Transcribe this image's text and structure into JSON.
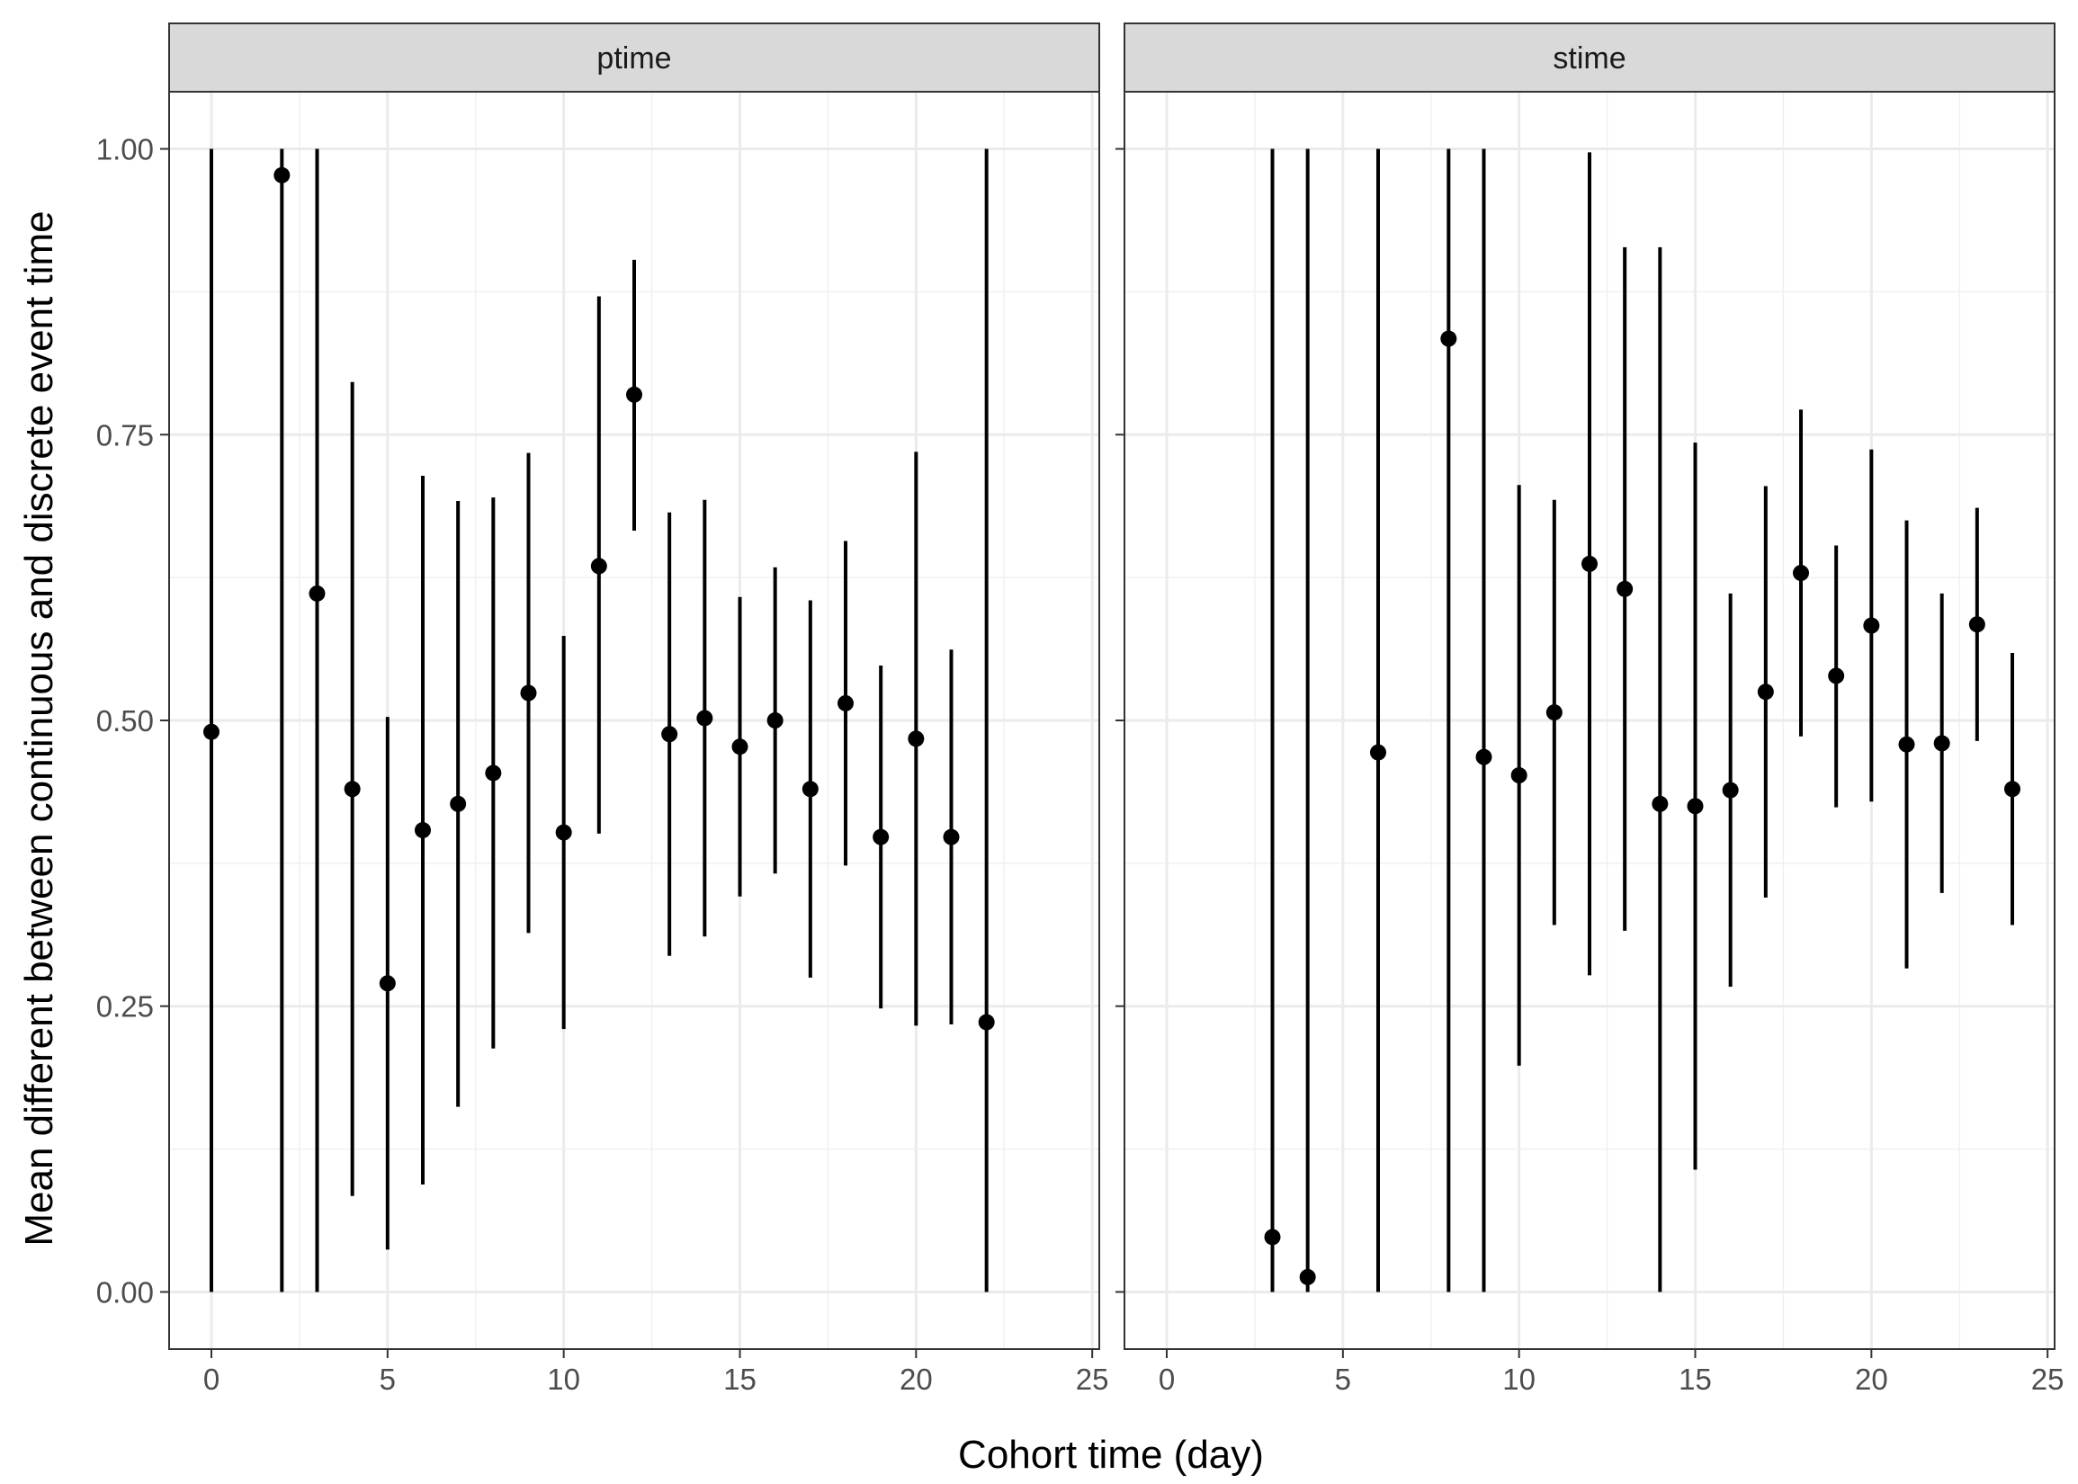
{
  "chart_data": {
    "type": "errorbar-scatter",
    "xlabel": "Cohort time (day)",
    "ylabel": "Mean different between continuous and discrete event time",
    "xlim": [
      -1.2,
      25.2
    ],
    "ylim": [
      -0.05,
      1.05
    ],
    "xticks": [
      0,
      5,
      10,
      15,
      20,
      25
    ],
    "yticks": [
      0.0,
      0.25,
      0.5,
      0.75,
      1.0
    ],
    "ytick_labels": [
      "0.00",
      "0.25",
      "0.50",
      "0.75",
      "1.00"
    ],
    "grid": true,
    "theme": "bw",
    "point_color": "#000000",
    "panels": [
      {
        "name": "ptime",
        "points": [
          {
            "x": 0,
            "y": 0.49,
            "lower": 0.0,
            "upper": 1.0
          },
          {
            "x": 2,
            "y": 0.977,
            "lower": 0.0,
            "upper": 1.0
          },
          {
            "x": 3,
            "y": 0.611,
            "lower": 0.0,
            "upper": 1.0
          },
          {
            "x": 4,
            "y": 0.44,
            "lower": 0.084,
            "upper": 0.796
          },
          {
            "x": 5,
            "y": 0.27,
            "lower": 0.037,
            "upper": 0.503
          },
          {
            "x": 6,
            "y": 0.404,
            "lower": 0.094,
            "upper": 0.714
          },
          {
            "x": 7,
            "y": 0.427,
            "lower": 0.162,
            "upper": 0.692
          },
          {
            "x": 8,
            "y": 0.454,
            "lower": 0.213,
            "upper": 0.695
          },
          {
            "x": 9,
            "y": 0.524,
            "lower": 0.314,
            "upper": 0.734
          },
          {
            "x": 10,
            "y": 0.402,
            "lower": 0.23,
            "upper": 0.574
          },
          {
            "x": 11,
            "y": 0.635,
            "lower": 0.401,
            "upper": 0.871
          },
          {
            "x": 12,
            "y": 0.785,
            "lower": 0.666,
            "upper": 0.903
          },
          {
            "x": 13,
            "y": 0.488,
            "lower": 0.294,
            "upper": 0.682
          },
          {
            "x": 14,
            "y": 0.502,
            "lower": 0.311,
            "upper": 0.693
          },
          {
            "x": 15,
            "y": 0.477,
            "lower": 0.346,
            "upper": 0.608
          },
          {
            "x": 16,
            "y": 0.5,
            "lower": 0.366,
            "upper": 0.634
          },
          {
            "x": 17,
            "y": 0.44,
            "lower": 0.275,
            "upper": 0.605
          },
          {
            "x": 18,
            "y": 0.515,
            "lower": 0.373,
            "upper": 0.657
          },
          {
            "x": 19,
            "y": 0.398,
            "lower": 0.248,
            "upper": 0.548
          },
          {
            "x": 20,
            "y": 0.484,
            "lower": 0.233,
            "upper": 0.735
          },
          {
            "x": 21,
            "y": 0.398,
            "lower": 0.234,
            "upper": 0.562
          },
          {
            "x": 22,
            "y": 0.236,
            "lower": 0.0,
            "upper": 1.0
          }
        ]
      },
      {
        "name": "stime",
        "points": [
          {
            "x": 3,
            "y": 0.048,
            "lower": 0.0,
            "upper": 1.0
          },
          {
            "x": 4,
            "y": 0.013,
            "lower": 0.0,
            "upper": 1.0
          },
          {
            "x": 6,
            "y": 0.472,
            "lower": 0.0,
            "upper": 1.0
          },
          {
            "x": 8,
            "y": 0.834,
            "lower": 0.0,
            "upper": 1.0
          },
          {
            "x": 9,
            "y": 0.468,
            "lower": 0.0,
            "upper": 1.0
          },
          {
            "x": 10,
            "y": 0.452,
            "lower": 0.198,
            "upper": 0.706
          },
          {
            "x": 11,
            "y": 0.507,
            "lower": 0.321,
            "upper": 0.693
          },
          {
            "x": 12,
            "y": 0.637,
            "lower": 0.277,
            "upper": 0.997
          },
          {
            "x": 13,
            "y": 0.615,
            "lower": 0.316,
            "upper": 0.914
          },
          {
            "x": 14,
            "y": 0.427,
            "lower": 0.0,
            "upper": 0.914
          },
          {
            "x": 15,
            "y": 0.425,
            "lower": 0.107,
            "upper": 0.743
          },
          {
            "x": 16,
            "y": 0.439,
            "lower": 0.267,
            "upper": 0.611
          },
          {
            "x": 17,
            "y": 0.525,
            "lower": 0.345,
            "upper": 0.705
          },
          {
            "x": 18,
            "y": 0.629,
            "lower": 0.486,
            "upper": 0.772
          },
          {
            "x": 19,
            "y": 0.539,
            "lower": 0.424,
            "upper": 0.653
          },
          {
            "x": 20,
            "y": 0.583,
            "lower": 0.429,
            "upper": 0.737
          },
          {
            "x": 21,
            "y": 0.479,
            "lower": 0.283,
            "upper": 0.675
          },
          {
            "x": 22,
            "y": 0.48,
            "lower": 0.349,
            "upper": 0.611
          },
          {
            "x": 23,
            "y": 0.584,
            "lower": 0.482,
            "upper": 0.686
          },
          {
            "x": 24,
            "y": 0.44,
            "lower": 0.321,
            "upper": 0.559
          }
        ]
      }
    ]
  }
}
